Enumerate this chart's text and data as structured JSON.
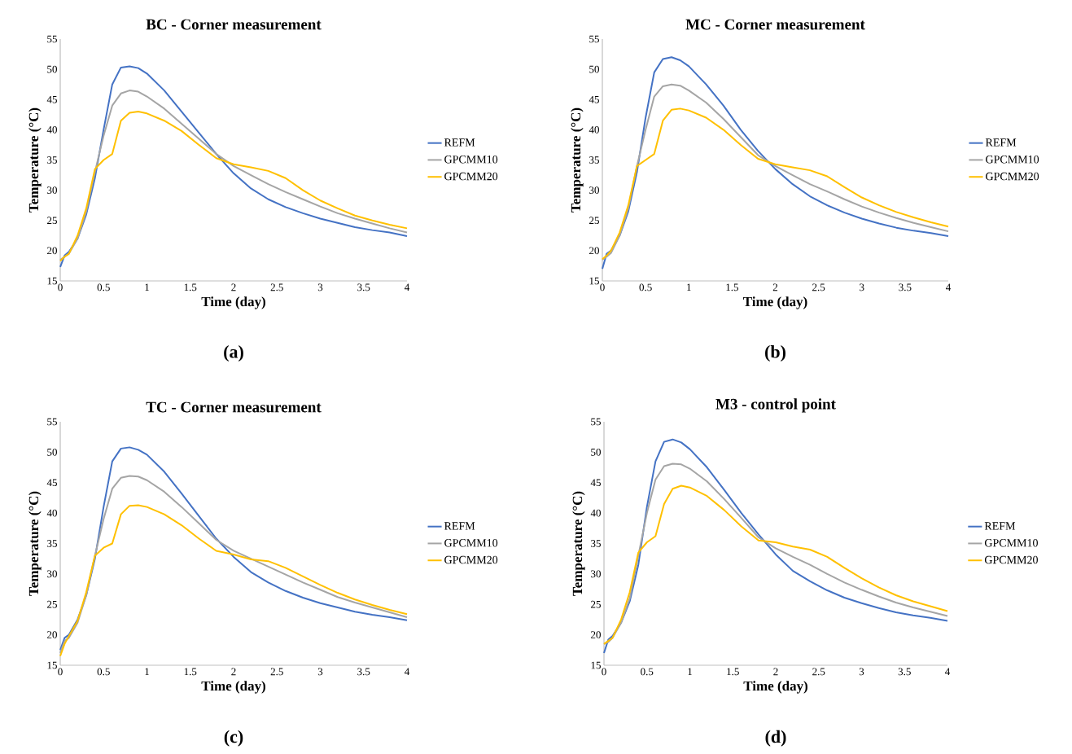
{
  "chart_data": [
    {
      "type": "line",
      "title": "BC - Corner measurement",
      "xlabel": "Time (day)",
      "ylabel": "Temperature (°C)",
      "annotations": [
        "(a)"
      ],
      "legend": "right",
      "line_style": "solid",
      "xlim": [
        0,
        4
      ],
      "ylim": [
        15,
        55
      ],
      "xticks": [
        0,
        0.5,
        1,
        1.5,
        2,
        2.5,
        3,
        3.5,
        4
      ],
      "yticks": [
        15,
        20,
        25,
        30,
        35,
        40,
        45,
        50,
        55
      ],
      "x": [
        0,
        0.05,
        0.1,
        0.2,
        0.3,
        0.4,
        0.5,
        0.6,
        0.7,
        0.8,
        0.9,
        1.0,
        1.2,
        1.4,
        1.6,
        1.8,
        2.0,
        2.2,
        2.4,
        2.6,
        2.8,
        3.0,
        3.2,
        3.4,
        3.6,
        3.8,
        4.0
      ],
      "series": [
        {
          "name": "REFM",
          "color": "#4472c4",
          "values": [
            17.3,
            19.2,
            19.8,
            22,
            26,
            32,
            40,
            47.5,
            50.3,
            50.5,
            50.2,
            49.3,
            46.5,
            43,
            39.5,
            36,
            32.8,
            30.3,
            28.5,
            27.2,
            26.2,
            25.3,
            24.6,
            23.9,
            23.4,
            23,
            22.4
          ]
        },
        {
          "name": "GPCMM10",
          "color": "#a5a5a5",
          "values": [
            18.5,
            19,
            19.5,
            22,
            26.5,
            33,
            39,
            44,
            46,
            46.5,
            46.3,
            45.5,
            43.5,
            41,
            38.5,
            36,
            34,
            32.5,
            31,
            29.7,
            28.5,
            27.3,
            26.2,
            25.3,
            24.5,
            23.7,
            23.0
          ]
        },
        {
          "name": "GPCMM20",
          "color": "#ffc000",
          "values": [
            18.3,
            19,
            19.5,
            22.5,
            27,
            33.5,
            35,
            36,
            41.5,
            42.8,
            43,
            42.7,
            41.5,
            39.8,
            37.5,
            35.3,
            34.3,
            33.8,
            33.2,
            32,
            30,
            28.3,
            27,
            25.8,
            25,
            24.3,
            23.7
          ]
        }
      ]
    },
    {
      "type": "line",
      "title": "MC - Corner measurement",
      "xlabel": "Time (day)",
      "ylabel": "Temperature (°C)",
      "annotations": [
        "(b)"
      ],
      "legend": "right",
      "line_style": "solid",
      "xlim": [
        0,
        4
      ],
      "ylim": [
        15,
        55
      ],
      "xticks": [
        0,
        0.5,
        1,
        1.5,
        2,
        2.5,
        3,
        3.5,
        4
      ],
      "yticks": [
        15,
        20,
        25,
        30,
        35,
        40,
        45,
        50,
        55
      ],
      "x": [
        0,
        0.05,
        0.1,
        0.2,
        0.3,
        0.4,
        0.5,
        0.6,
        0.7,
        0.8,
        0.9,
        1.0,
        1.2,
        1.4,
        1.6,
        1.8,
        2.0,
        2.2,
        2.4,
        2.6,
        2.8,
        3.0,
        3.2,
        3.4,
        3.6,
        3.8,
        4.0
      ],
      "series": [
        {
          "name": "REFM",
          "color": "#4472c4",
          "values": [
            17,
            19.5,
            20,
            22.5,
            26.5,
            33,
            42,
            49.5,
            51.7,
            52,
            51.5,
            50.5,
            47.5,
            44,
            40,
            36.5,
            33.5,
            31,
            29,
            27.5,
            26.3,
            25.3,
            24.5,
            23.8,
            23.3,
            22.9,
            22.4
          ]
        },
        {
          "name": "GPCMM10",
          "color": "#a5a5a5",
          "values": [
            18.5,
            19,
            19.6,
            22.5,
            27,
            34,
            40,
            45.5,
            47.2,
            47.5,
            47.3,
            46.5,
            44.5,
            41.8,
            38.8,
            35.8,
            34,
            32.5,
            31,
            29.8,
            28.5,
            27.3,
            26.3,
            25.4,
            24.6,
            23.9,
            23.2
          ]
        },
        {
          "name": "GPCMM20",
          "color": "#ffc000",
          "values": [
            18.6,
            19.2,
            20,
            23,
            27.5,
            34,
            35,
            36,
            41.5,
            43.3,
            43.5,
            43.2,
            42,
            40,
            37.5,
            35.2,
            34.3,
            33.8,
            33.3,
            32.3,
            30.5,
            28.8,
            27.5,
            26.4,
            25.5,
            24.7,
            24.0
          ]
        }
      ]
    },
    {
      "type": "line",
      "title": "TC - Corner measurement",
      "xlabel": "Time (day)",
      "ylabel": "Temperature (°C)",
      "annotations": [
        "(c)"
      ],
      "legend": "right",
      "line_style": "solid",
      "xlim": [
        0,
        4
      ],
      "ylim": [
        15,
        55
      ],
      "xticks": [
        0,
        0.5,
        1,
        1.5,
        2,
        2.5,
        3,
        3.5,
        4
      ],
      "yticks": [
        15,
        20,
        25,
        30,
        35,
        40,
        45,
        50,
        55
      ],
      "x": [
        0,
        0.05,
        0.1,
        0.2,
        0.3,
        0.4,
        0.5,
        0.6,
        0.7,
        0.8,
        0.9,
        1.0,
        1.2,
        1.4,
        1.6,
        1.8,
        2.0,
        2.2,
        2.4,
        2.6,
        2.8,
        3.0,
        3.2,
        3.4,
        3.6,
        3.8,
        4.0
      ],
      "series": [
        {
          "name": "REFM",
          "color": "#4472c4",
          "values": [
            17.5,
            19.5,
            20,
            22.5,
            26.5,
            32.5,
            41,
            48.5,
            50.6,
            50.8,
            50.4,
            49.6,
            46.8,
            43.2,
            39.5,
            35.8,
            32.8,
            30.3,
            28.6,
            27.2,
            26.1,
            25.2,
            24.5,
            23.8,
            23.3,
            22.9,
            22.4
          ]
        },
        {
          "name": "GPCMM10",
          "color": "#a5a5a5",
          "values": [
            17,
            19,
            19.5,
            22,
            26.5,
            33,
            39,
            44,
            45.8,
            46.1,
            46,
            45.4,
            43.5,
            41,
            38.3,
            35.6,
            33.8,
            32.5,
            31.2,
            29.9,
            28.6,
            27.4,
            26.2,
            25.3,
            24.5,
            23.7,
            22.9
          ]
        },
        {
          "name": "GPCMM20",
          "color": "#ffc000",
          "values": [
            16.5,
            18.5,
            19.8,
            22.3,
            27,
            33,
            34.3,
            35,
            39.8,
            41.2,
            41.3,
            41,
            39.8,
            38,
            35.8,
            33.8,
            33.2,
            32.4,
            32.1,
            31,
            29.6,
            28.2,
            26.9,
            25.8,
            24.9,
            24.1,
            23.4
          ]
        }
      ]
    },
    {
      "type": "line",
      "title": "M3 - control point",
      "xlabel": "Time (day)",
      "ylabel": "Temperature (°C)",
      "annotations": [
        "(d)"
      ],
      "legend": "right",
      "line_style": "solid",
      "xlim": [
        0,
        4
      ],
      "ylim": [
        15,
        55
      ],
      "xticks": [
        0,
        0.5,
        1,
        1.5,
        2,
        2.5,
        3,
        3.5,
        4
      ],
      "yticks": [
        15,
        20,
        25,
        30,
        35,
        40,
        45,
        50,
        55
      ],
      "x": [
        0,
        0.05,
        0.1,
        0.2,
        0.3,
        0.4,
        0.5,
        0.6,
        0.7,
        0.8,
        0.9,
        1.0,
        1.2,
        1.4,
        1.6,
        1.8,
        2.0,
        2.2,
        2.4,
        2.6,
        2.8,
        3.0,
        3.2,
        3.4,
        3.6,
        3.8,
        4.0
      ],
      "series": [
        {
          "name": "REFM",
          "color": "#4472c4",
          "values": [
            17,
            19.2,
            19.8,
            22,
            25.5,
            31.5,
            41,
            48.5,
            51.7,
            52.1,
            51.6,
            50.5,
            47.5,
            43.8,
            40,
            36.5,
            33.2,
            30.5,
            28.8,
            27.3,
            26.1,
            25.2,
            24.4,
            23.7,
            23.2,
            22.8,
            22.3
          ]
        },
        {
          "name": "GPCMM10",
          "color": "#a5a5a5",
          "values": [
            18.5,
            18.8,
            19.5,
            22,
            26,
            33,
            40,
            45.5,
            47.7,
            48.1,
            48,
            47.3,
            45.2,
            42.3,
            39.2,
            36,
            34.2,
            32.8,
            31.5,
            30,
            28.6,
            27.4,
            26.3,
            25.3,
            24.5,
            23.8,
            23.1
          ]
        },
        {
          "name": "GPCMM20",
          "color": "#ffc000",
          "values": [
            18.5,
            19,
            19.5,
            22.5,
            27,
            33.5,
            35.2,
            36.2,
            41.5,
            44,
            44.5,
            44.2,
            42.8,
            40.5,
            37.8,
            35.5,
            35.2,
            34.5,
            34,
            32.8,
            31,
            29.3,
            27.8,
            26.5,
            25.5,
            24.7,
            23.9
          ]
        }
      ]
    }
  ]
}
